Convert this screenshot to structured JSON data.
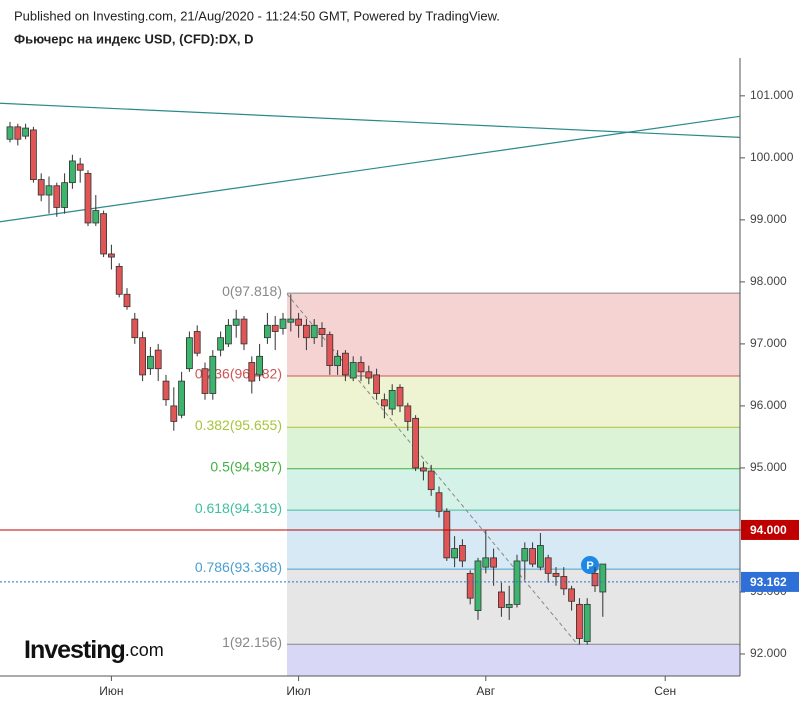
{
  "header": {
    "published": "Published on Investing.com, 21/Aug/2020 - 11:24:50 GMT, Powered by TradingView.",
    "instrument": "Фьючерс на индекс USD, (CFD):DX, D"
  },
  "logo": {
    "brand": "Investing",
    "suffix": ".com"
  },
  "chart_data": {
    "type": "candlestick",
    "categories": [
      null,
      null,
      null,
      null,
      null,
      null,
      null,
      null,
      null,
      null,
      null,
      null,
      null,
      "Июн",
      null,
      null,
      null,
      null,
      null,
      null,
      null,
      null,
      null,
      null,
      null,
      null,
      null,
      null,
      null,
      null,
      null,
      null,
      null,
      null,
      null,
      null,
      null,
      "Июл",
      null,
      null,
      null,
      null,
      null,
      null,
      null,
      null,
      null,
      null,
      null,
      null,
      null,
      null,
      null,
      null,
      null,
      null,
      null,
      null,
      null,
      null,
      null,
      "Авг",
      null,
      null,
      null,
      null,
      null,
      null,
      null,
      null,
      null,
      null,
      null,
      null,
      null,
      null,
      null,
      null,
      null,
      null,
      null,
      null,
      null,
      null,
      "Сен",
      null,
      null,
      null,
      null,
      null
    ],
    "open": [
      100.3,
      100.5,
      100.35,
      100.45,
      99.65,
      99.4,
      99.55,
      99.2,
      99.6,
      99.9,
      99.75,
      98.95,
      99.1,
      98.45,
      98.25,
      97.8,
      97.4,
      97.1,
      96.6,
      96.9,
      96.4,
      96.0,
      95.85,
      96.6,
      97.2,
      96.6,
      96.2,
      96.9,
      97.0,
      97.3,
      97.4,
      96.7,
      96.5,
      97.1,
      97.3,
      97.25,
      97.35,
      97.4,
      97.3,
      97.1,
      97.25,
      97.15,
      96.65,
      96.85,
      96.45,
      96.7,
      96.55,
      96.5,
      96.1,
      95.95,
      96.3,
      96.0,
      95.8,
      95.0,
      94.95,
      94.6,
      94.3,
      93.55,
      93.75,
      93.3,
      92.7,
      93.4,
      93.55,
      93.0,
      92.75,
      92.8,
      93.5,
      93.7,
      93.4,
      93.55,
      93.3,
      93.25,
      93.05,
      92.8,
      92.2,
      93.3,
      93.0,
      null,
      null,
      null,
      null,
      null,
      null,
      null,
      null,
      null,
      null,
      null,
      null,
      null
    ],
    "high": [
      100.58,
      100.55,
      100.55,
      100.5,
      99.75,
      99.7,
      99.6,
      99.75,
      100.05,
      100.0,
      99.8,
      99.4,
      99.15,
      98.6,
      98.3,
      97.9,
      97.5,
      97.2,
      96.95,
      97.0,
      96.5,
      96.3,
      96.55,
      97.2,
      97.3,
      96.7,
      96.9,
      97.2,
      97.4,
      97.55,
      97.45,
      96.8,
      97.0,
      97.5,
      97.45,
      97.5,
      97.8,
      97.5,
      97.4,
      97.4,
      97.35,
      97.2,
      96.9,
      96.9,
      96.8,
      96.8,
      96.65,
      96.6,
      96.2,
      96.35,
      96.35,
      96.05,
      95.85,
      95.1,
      95.05,
      94.7,
      94.35,
      93.9,
      93.85,
      93.35,
      93.55,
      94.0,
      93.7,
      93.15,
      93.1,
      93.6,
      93.8,
      93.8,
      93.95,
      93.6,
      93.4,
      93.4,
      93.1,
      92.9,
      92.9,
      93.4,
      93.45,
      null,
      null,
      null,
      null,
      null,
      null,
      null,
      null,
      null,
      null,
      null,
      null,
      null
    ],
    "low": [
      100.25,
      100.2,
      100.3,
      99.6,
      99.3,
      99.1,
      99.05,
      99.1,
      99.5,
      99.6,
      98.9,
      98.9,
      98.4,
      98.2,
      97.75,
      97.55,
      97.0,
      96.4,
      96.5,
      96.4,
      96.0,
      95.6,
      95.8,
      96.55,
      96.8,
      96.1,
      96.1,
      96.8,
      96.95,
      97.1,
      96.9,
      96.2,
      96.4,
      97.0,
      96.9,
      97.15,
      97.2,
      97.1,
      96.9,
      97.0,
      96.95,
      96.5,
      96.5,
      96.4,
      96.4,
      96.4,
      96.35,
      96.1,
      95.8,
      95.85,
      95.9,
      95.6,
      94.95,
      94.8,
      94.55,
      94.2,
      93.5,
      93.4,
      93.4,
      92.8,
      92.55,
      93.3,
      93.1,
      92.6,
      92.55,
      92.75,
      93.2,
      93.4,
      93.35,
      93.15,
      93.1,
      92.95,
      92.7,
      92.15,
      92.15,
      93.0,
      92.6,
      null,
      null,
      null,
      null,
      null,
      null,
      null,
      null,
      null,
      null,
      null,
      null,
      null
    ],
    "close": [
      100.5,
      100.3,
      100.48,
      99.65,
      99.4,
      99.55,
      99.2,
      99.6,
      99.95,
      99.8,
      98.95,
      99.15,
      98.45,
      98.4,
      97.8,
      97.6,
      97.1,
      96.5,
      96.8,
      96.6,
      96.1,
      95.75,
      96.4,
      97.1,
      96.85,
      96.2,
      96.8,
      97.1,
      97.3,
      97.4,
      97.0,
      96.4,
      96.8,
      97.3,
      97.2,
      97.4,
      97.4,
      97.3,
      97.1,
      97.3,
      97.15,
      96.65,
      96.8,
      96.5,
      96.7,
      96.55,
      96.45,
      96.2,
      96.0,
      96.25,
      96.0,
      95.75,
      95.0,
      94.95,
      94.65,
      94.3,
      93.55,
      93.7,
      93.5,
      92.9,
      93.5,
      93.55,
      93.4,
      92.75,
      92.8,
      93.5,
      93.7,
      93.45,
      93.75,
      93.3,
      93.25,
      93.05,
      92.85,
      92.25,
      92.8,
      93.1,
      93.45,
      null,
      null,
      null,
      null,
      null,
      null,
      null,
      null,
      null,
      null,
      null,
      null,
      null
    ],
    "up_color": "#3cb46e",
    "down_color": "#e05555",
    "ylim": [
      91.645,
      101.61
    ],
    "yticks": [
      {
        "value": 92,
        "label": "92.000"
      },
      {
        "value": 93,
        "label": "93.000"
      },
      {
        "value": 94,
        "label": "94.000"
      },
      {
        "value": 95,
        "label": "95.000"
      },
      {
        "value": 96,
        "label": "96.000"
      },
      {
        "value": 97,
        "label": "97.000"
      },
      {
        "value": 98,
        "label": "98.000"
      },
      {
        "value": 99,
        "label": "99.000"
      },
      {
        "value": 100,
        "label": "100.000"
      },
      {
        "value": 101,
        "label": "101.000"
      }
    ],
    "fib_levels": [
      {
        "value": 97.818,
        "label": "0(97.818)",
        "color": "#888888",
        "zone_color": "#f5d3d3"
      },
      {
        "value": 96.482,
        "label": "0.236(96.482)",
        "color": "#cc5555",
        "zone_color": "#eef4d2"
      },
      {
        "value": 95.655,
        "label": "0.382(95.655)",
        "color": "#a8c43a",
        "zone_color": "#dcf3d6"
      },
      {
        "value": 94.987,
        "label": "0.5(94.987)",
        "color": "#44b044",
        "zone_color": "#d5f2e9"
      },
      {
        "value": 94.319,
        "label": "0.618(94.319)",
        "color": "#3fbf9f",
        "zone_color": "#d6e9f5"
      },
      {
        "value": 93.368,
        "label": "0.786(93.368)",
        "color": "#4a9fcf",
        "zone_color": "#e6e6e6"
      },
      {
        "value": 92.156,
        "label": "1(92.156)",
        "color": "#888888",
        "zone_color": "#d8d8f6"
      }
    ],
    "level_line": {
      "value": 94,
      "label": "94.000",
      "color": "#c00000"
    },
    "last_price": {
      "value": 93.162,
      "label": "93.162",
      "color": "#2f6fd8"
    },
    "trend_lines": [
      {
        "y": [
          100.88,
          100.33
        ],
        "color": "#2a8a8a"
      },
      {
        "y": [
          98.97,
          100.67
        ],
        "color": "#2a8a8a"
      }
    ]
  }
}
